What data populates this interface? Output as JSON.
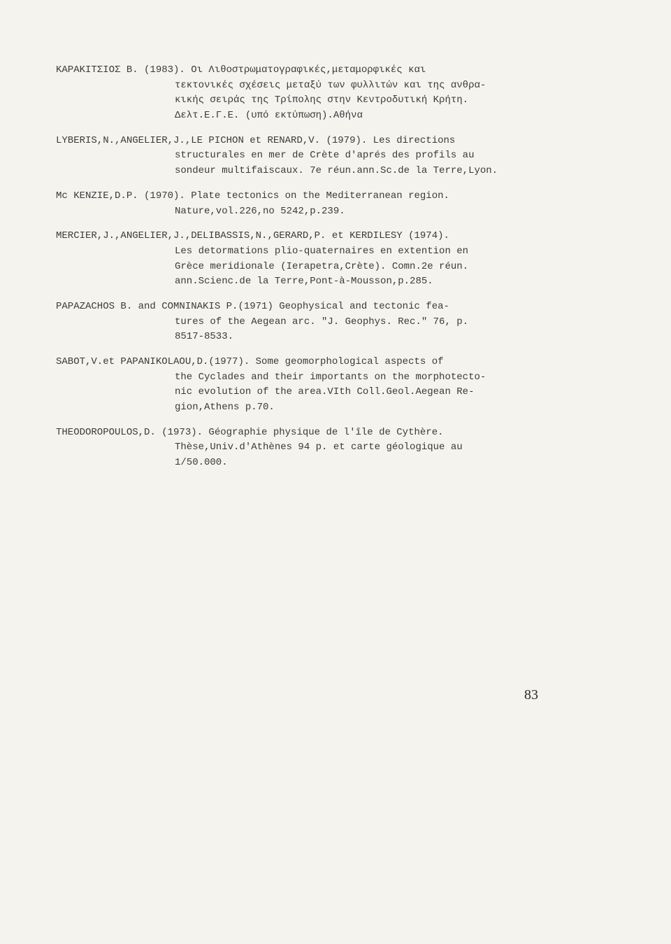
{
  "page_number": "83",
  "references": [
    {
      "first": "ΚΑΡΑΚΙΤΣΙΟΣ Β.  (1983). Οι Λιθοστρωματογραφικές,μεταμορφικές και",
      "cont": [
        "τεκτονικές σχέσεις μεταξύ των φυλλιτών και της ανθρα-",
        "κικής σειράς της Τρίπολης στην Κεντροδυτική Κρήτη.",
        "Δελτ.Ε.Γ.Ε. (υπό εκτύπωση).Αθήνα"
      ]
    },
    {
      "first": "LYBERIS,N.,ANGELIER,J.,LE PICHON et RENARD,V. (1979). Les directions",
      "cont": [
        "structurales en mer de Crète d'aprés des profils au",
        "sondeur multifaiscaux. 7e réun.ann.Sc.de la Terre,Lyon."
      ]
    },
    {
      "first": "Mc KENZIE,D.P. (1970). Plate tectonics on the Mediterranean region.",
      "cont": [
        "Nature,vol.226,no 5242,p.239."
      ]
    },
    {
      "first": "MERCIER,J.,ANGELIER,J.,DELIBASSIS,N.,GERARD,P. et KERDILESY (1974).",
      "cont": [
        "Les detormations plio-quaternaires en extention en",
        "Grèce meridionale (Ierapetra,Crète). Comn.2e réun.",
        "ann.Scienc.de la Terre,Pont-à-Mousson,p.285."
      ]
    },
    {
      "first": "PAPAZACHOS B. and COMNINAKIS P.(1971) Geophysical and tectonic fea-",
      "cont": [
        "tures of the Aegean arc. \"J. Geophys. Rec.\" 76, p.",
        "8517-8533."
      ]
    },
    {
      "first": "SABOT,V.et PAPANIKOLAOU,D.(1977). Some geomorphological aspects of",
      "cont": [
        "the Cyclades and their importants on the morphotecto-",
        "nic evolution of the area.VIth Coll.Geol.Aegean Re-",
        "gion,Athens p.70."
      ]
    },
    {
      "first": "THEODOROPOULOS,D. (1973). Géographie physique de l'île de Cythère.",
      "cont": [
        "Thèse,Univ.d'Athènes 94 p. et carte géologique au",
        "1/50.000."
      ]
    }
  ]
}
